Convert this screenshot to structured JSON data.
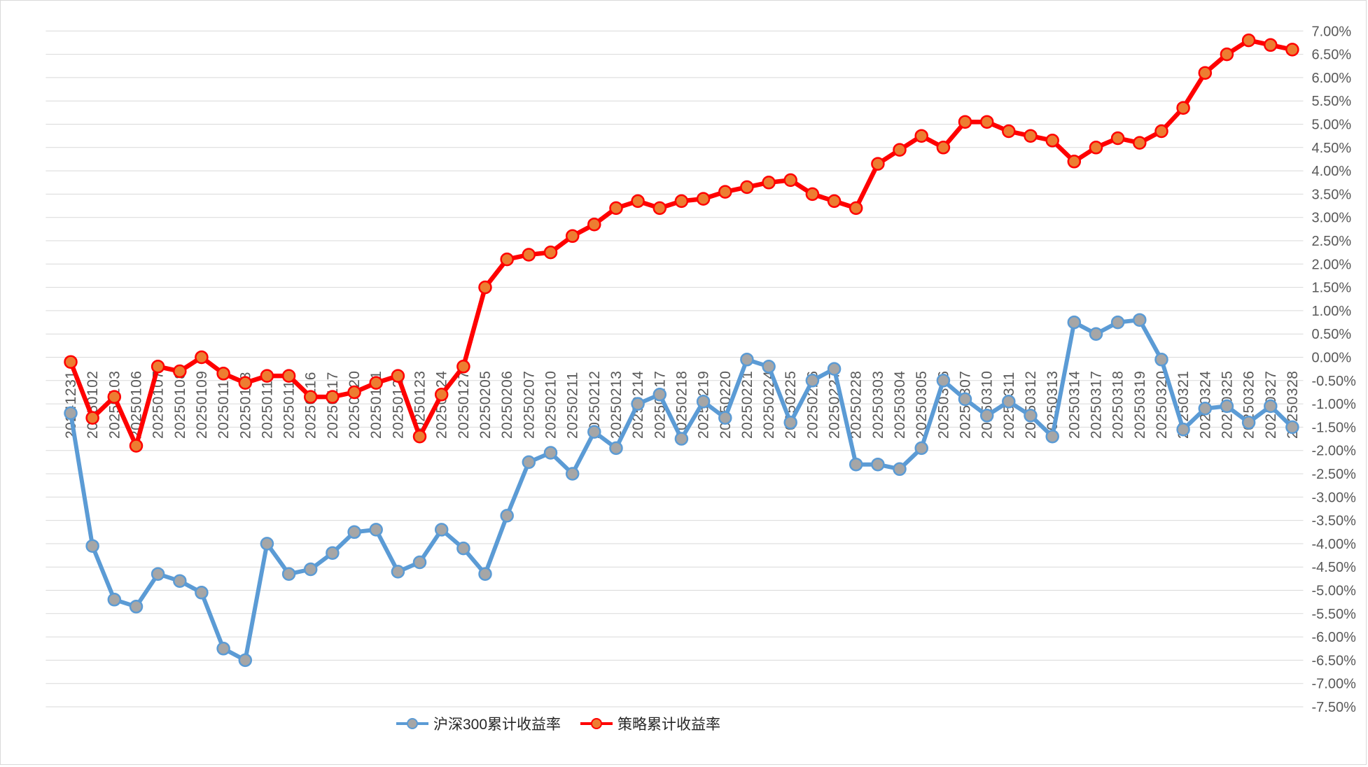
{
  "chart_data": {
    "type": "line",
    "title": "",
    "xlabel": "",
    "ylabel": "",
    "x": [
      "20241231",
      "20250102",
      "20250103",
      "20250106",
      "20250107",
      "20250108",
      "20250109",
      "20250110",
      "20250113",
      "20250114",
      "20250115",
      "20250116",
      "20250117",
      "20250120",
      "20250121",
      "20250122",
      "20250123",
      "20250124",
      "20250127",
      "20250205",
      "20250206",
      "20250207",
      "20250210",
      "20250211",
      "20250212",
      "20250213",
      "20250214",
      "20250217",
      "20250218",
      "20250219",
      "20250220",
      "20250221",
      "20250224",
      "20250225",
      "20250226",
      "20250227",
      "20250228",
      "20250303",
      "20250304",
      "20250305",
      "20250306",
      "20250307",
      "20250310",
      "20250311",
      "20250312",
      "20250313",
      "20250314",
      "20250317",
      "20250318",
      "20250319",
      "20250320",
      "20250321",
      "20250324",
      "20250325",
      "20250326",
      "20250327",
      "20250328"
    ],
    "series": [
      {
        "name": "沪深300累计收益率",
        "color": "#5B9BD5",
        "marker_fill": "#A6A6A6",
        "values": [
          -1.2,
          -4.05,
          -5.2,
          -5.35,
          -4.65,
          -4.8,
          -5.05,
          -6.25,
          -6.5,
          -4.0,
          -4.65,
          -4.55,
          -4.2,
          -3.75,
          -3.7,
          -4.6,
          -4.4,
          -3.7,
          -4.1,
          -4.65,
          -3.4,
          -2.25,
          -2.05,
          -2.5,
          -1.6,
          -1.95,
          -1.0,
          -0.8,
          -1.75,
          -0.95,
          -1.3,
          -0.05,
          -0.2,
          -1.4,
          -0.5,
          -0.25,
          -2.3,
          -2.3,
          -2.4,
          -1.95,
          -0.5,
          -0.9,
          -1.25,
          -0.95,
          -1.25,
          -1.7,
          0.75,
          0.5,
          0.75,
          0.8,
          -0.05,
          -1.55,
          -1.1,
          -1.05,
          -1.4,
          -1.05,
          -1.5
        ]
      },
      {
        "name": "策略累计收益率",
        "color": "#FF0000",
        "marker_fill": "#ED7D31",
        "values": [
          -0.1,
          -1.3,
          -0.85,
          -1.9,
          -0.2,
          -0.3,
          0.0,
          -0.35,
          -0.55,
          -0.4,
          -0.4,
          -0.85,
          -0.85,
          -0.75,
          -0.55,
          -0.4,
          -1.7,
          -0.8,
          -0.2,
          1.5,
          2.1,
          2.2,
          2.25,
          2.6,
          2.85,
          3.2,
          3.35,
          3.2,
          3.35,
          3.4,
          3.55,
          3.65,
          3.75,
          3.8,
          3.5,
          3.35,
          3.2,
          4.15,
          4.45,
          4.75,
          4.5,
          5.05,
          5.05,
          4.85,
          4.75,
          4.65,
          4.2,
          4.5,
          4.7,
          4.6,
          4.85,
          5.35,
          6.1,
          6.5,
          6.8,
          6.7,
          6.6
        ]
      }
    ],
    "ylim": [
      -7.5,
      7.0
    ],
    "ytick_step": 0.5,
    "ytick_labels": [
      "7.00%",
      "6.50%",
      "6.00%",
      "5.50%",
      "5.00%",
      "4.50%",
      "4.00%",
      "3.50%",
      "3.00%",
      "2.50%",
      "2.00%",
      "1.50%",
      "1.00%",
      "0.50%",
      "0.00%",
      "-0.50%",
      "-1.00%",
      "-1.50%",
      "-2.00%",
      "-2.50%",
      "-3.00%",
      "-3.50%",
      "-4.00%",
      "-4.50%",
      "-5.00%",
      "-5.50%",
      "-6.00%",
      "-6.50%",
      "-7.00%",
      "-7.50%"
    ],
    "grid": "horizontal",
    "legend_position": "bottom"
  },
  "legend": {
    "items": [
      {
        "label": "沪深300累计收益率",
        "line_color": "#5B9BD5",
        "marker_fill": "#A6A6A6"
      },
      {
        "label": "策略累计收益率",
        "line_color": "#FF0000",
        "marker_fill": "#ED7D31"
      }
    ]
  },
  "colors": {
    "background": "#FFFFFF",
    "gridline": "#D9D9D9",
    "axis_label": "#595959",
    "legend_text": "#262626"
  }
}
